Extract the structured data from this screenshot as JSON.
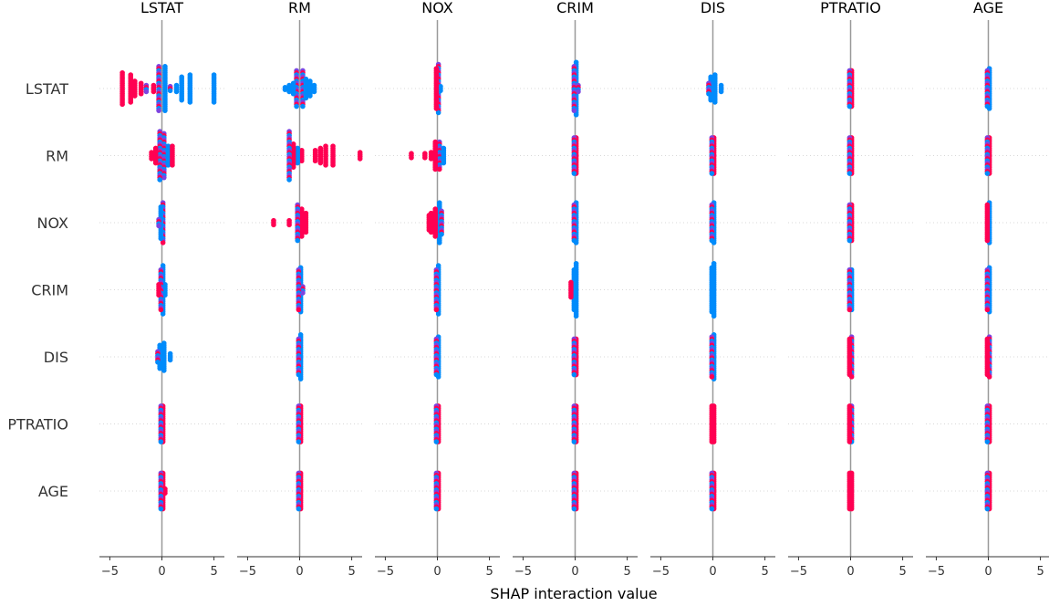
{
  "chart_data": {
    "type": "scatter",
    "subtype": "shap-interaction-beeswarm-grid",
    "xlabel": "SHAP interaction value",
    "features": [
      "LSTAT",
      "RM",
      "NOX",
      "CRIM",
      "DIS",
      "PTRATIO",
      "AGE"
    ],
    "panel_titles": [
      "LSTAT",
      "RM",
      "NOX",
      "CRIM",
      "DIS",
      "PTRATIO",
      "AGE"
    ],
    "row_labels": [
      "LSTAT",
      "RM",
      "NOX",
      "CRIM",
      "DIS",
      "PTRATIO",
      "AGE"
    ],
    "xlim": [
      -6,
      6
    ],
    "xticks": [
      -5,
      0,
      5
    ],
    "xtick_labels": [
      "−5",
      "0",
      "5"
    ],
    "grid": false,
    "row_gridlines": "dotted",
    "zero_line": true,
    "colormap": {
      "low": "#008bfb",
      "mid": "#7d44e0",
      "high": "#ff0052"
    },
    "cells": [
      [
        {
          "pos": [
            [
              0.3,
              "l",
              22
            ],
            [
              0.8,
              "m",
              3
            ],
            [
              1.4,
              "l",
              4
            ],
            [
              1.9,
              "l",
              12
            ],
            [
              2.7,
              "l",
              14
            ],
            [
              5.0,
              "l",
              14
            ]
          ],
          "neg": [
            [
              -0.3,
              "m",
              22
            ],
            [
              -0.8,
              "h",
              4
            ],
            [
              -1.5,
              "m",
              4
            ],
            [
              -2.0,
              "h",
              6
            ],
            [
              -2.6,
              "h",
              8
            ],
            [
              -3.0,
              "h",
              14
            ],
            [
              -3.8,
              "h",
              16
            ]
          ]
        },
        {
          "pos": [
            [
              0.3,
              "m",
              18
            ],
            [
              0.6,
              "l",
              10
            ],
            [
              1.0,
              "l",
              8
            ],
            [
              1.4,
              "l",
              4
            ]
          ],
          "neg": [
            [
              -0.3,
              "m",
              18
            ],
            [
              -0.6,
              "l",
              6
            ],
            [
              -1.0,
              "l",
              4
            ],
            [
              -1.4,
              "l",
              2
            ]
          ]
        },
        {
          "pos": [
            [
              0.1,
              "m",
              24
            ],
            [
              0.3,
              "l",
              3
            ]
          ],
          "neg": [
            [
              -0.1,
              "h",
              20
            ]
          ]
        },
        {
          "pos": [
            [
              0.1,
              "l",
              26
            ],
            [
              0.3,
              "m",
              4
            ]
          ],
          "neg": [
            [
              -0.1,
              "m",
              22
            ]
          ]
        },
        {
          "pos": [
            [
              0.2,
              "l",
              14
            ],
            [
              0.8,
              "l",
              4
            ]
          ],
          "neg": [
            [
              -0.2,
              "l",
              12
            ],
            [
              -0.4,
              "m",
              6
            ]
          ]
        },
        {
          "pos": [
            [
              0.1,
              "h",
              18
            ]
          ],
          "neg": [
            [
              -0.1,
              "m",
              18
            ]
          ]
        },
        {
          "pos": [
            [
              0.1,
              "l",
              20
            ]
          ],
          "neg": [
            [
              -0.1,
              "m",
              18
            ]
          ]
        }
      ],
      [
        {
          "pos": [
            [
              0.2,
              "m",
              22
            ],
            [
              0.6,
              "l",
              10
            ],
            [
              1.0,
              "h",
              10
            ]
          ],
          "neg": [
            [
              -0.2,
              "m",
              24
            ],
            [
              -0.6,
              "h",
              8
            ],
            [
              -1.0,
              "h",
              4
            ]
          ]
        },
        {
          "pos": [
            [
              0.2,
              "h",
              6
            ],
            [
              1.5,
              "h",
              6
            ],
            [
              2.0,
              "h",
              8
            ],
            [
              2.5,
              "h",
              10
            ],
            [
              3.2,
              "h",
              10
            ],
            [
              5.8,
              "h",
              4
            ]
          ],
          "neg": [
            [
              -0.2,
              "l",
              8
            ],
            [
              -0.6,
              "h",
              12
            ],
            [
              -1.0,
              "m",
              24
            ]
          ]
        },
        {
          "pos": [
            [
              0.2,
              "m",
              14
            ],
            [
              0.6,
              "l",
              8
            ]
          ],
          "neg": [
            [
              -0.2,
              "h",
              14
            ],
            [
              -0.6,
              "h",
              4
            ],
            [
              -1.2,
              "h",
              3
            ],
            [
              -2.5,
              "h",
              3
            ]
          ]
        },
        {
          "pos": [
            [
              0.1,
              "h",
              18
            ]
          ],
          "neg": [
            [
              -0.1,
              "m",
              18
            ]
          ]
        },
        {
          "pos": [
            [
              0.1,
              "h",
              18
            ]
          ],
          "neg": [
            [
              -0.1,
              "m",
              18
            ]
          ]
        },
        {
          "pos": [
            [
              0.1,
              "h",
              18
            ]
          ],
          "neg": [
            [
              -0.1,
              "m",
              18
            ]
          ]
        },
        {
          "pos": [
            [
              0.1,
              "h",
              18
            ]
          ],
          "neg": [
            [
              -0.1,
              "m",
              18
            ]
          ]
        }
      ],
      [
        {
          "pos": [
            [
              0.1,
              "m",
              20
            ]
          ],
          "neg": [
            [
              -0.1,
              "l",
              16
            ],
            [
              -0.3,
              "m",
              4
            ]
          ]
        },
        {
          "pos": [
            [
              0.2,
              "h",
              14
            ],
            [
              0.6,
              "h",
              10
            ]
          ],
          "neg": [
            [
              -0.2,
              "m",
              18
            ],
            [
              -1.0,
              "h",
              3
            ],
            [
              -2.5,
              "h",
              3
            ]
          ]
        },
        {
          "pos": [
            [
              0.2,
              "l",
              20
            ],
            [
              0.4,
              "m",
              12
            ]
          ],
          "neg": [
            [
              -0.2,
              "h",
              14
            ],
            [
              -0.6,
              "h",
              10
            ],
            [
              -0.8,
              "h",
              8
            ]
          ]
        },
        {
          "pos": [
            [
              0.1,
              "l",
              20
            ]
          ],
          "neg": [
            [
              -0.1,
              "m",
              18
            ]
          ]
        },
        {
          "pos": [
            [
              0.1,
              "l",
              20
            ]
          ],
          "neg": [
            [
              -0.1,
              "m",
              18
            ]
          ]
        },
        {
          "pos": [
            [
              0.1,
              "h",
              18
            ]
          ],
          "neg": [
            [
              -0.1,
              "m",
              18
            ]
          ]
        },
        {
          "pos": [
            [
              0.1,
              "l",
              20
            ]
          ],
          "neg": [
            [
              -0.1,
              "h",
              18
            ]
          ]
        }
      ],
      [
        {
          "pos": [
            [
              0.1,
              "l",
              24
            ],
            [
              0.3,
              "l",
              6
            ]
          ],
          "neg": [
            [
              -0.1,
              "m",
              20
            ],
            [
              -0.3,
              "h",
              6
            ]
          ]
        },
        {
          "pos": [
            [
              0.1,
              "l",
              22
            ],
            [
              0.3,
              "m",
              4
            ]
          ],
          "neg": [
            [
              -0.1,
              "m",
              20
            ]
          ]
        },
        {
          "pos": [
            [
              0.1,
              "l",
              24
            ]
          ],
          "neg": [
            [
              -0.1,
              "m",
              20
            ]
          ]
        },
        {
          "pos": [
            [
              0.1,
              "l",
              26
            ]
          ],
          "neg": [
            [
              -0.1,
              "l",
              20
            ],
            [
              -0.4,
              "h",
              8
            ]
          ]
        },
        {
          "pos": [
            [
              0.1,
              "l",
              26
            ]
          ],
          "neg": [
            [
              -0.1,
              "l",
              22
            ]
          ]
        },
        {
          "pos": [
            [
              0.1,
              "l",
              20
            ]
          ],
          "neg": [
            [
              -0.1,
              "m",
              20
            ]
          ]
        },
        {
          "pos": [
            [
              0.1,
              "l",
              22
            ]
          ],
          "neg": [
            [
              -0.1,
              "m",
              20
            ]
          ]
        }
      ],
      [
        {
          "pos": [
            [
              0.2,
              "l",
              14
            ],
            [
              0.8,
              "l",
              4
            ]
          ],
          "neg": [
            [
              -0.2,
              "l",
              12
            ],
            [
              -0.4,
              "m",
              6
            ]
          ]
        },
        {
          "pos": [
            [
              0.1,
              "l",
              22
            ]
          ],
          "neg": [
            [
              -0.1,
              "m",
              18
            ]
          ]
        },
        {
          "pos": [
            [
              0.1,
              "l",
              20
            ]
          ],
          "neg": [
            [
              -0.1,
              "m",
              18
            ]
          ]
        },
        {
          "pos": [
            [
              0.1,
              "h",
              18
            ]
          ],
          "neg": [
            [
              -0.1,
              "m",
              18
            ]
          ]
        },
        {
          "pos": [
            [
              0.1,
              "l",
              22
            ]
          ],
          "neg": [
            [
              -0.1,
              "m",
              20
            ]
          ]
        },
        {
          "pos": [
            [
              0.1,
              "m",
              20
            ]
          ],
          "neg": [
            [
              -0.1,
              "h",
              18
            ]
          ]
        },
        {
          "pos": [
            [
              0.1,
              "m",
              20
            ]
          ],
          "neg": [
            [
              -0.1,
              "h",
              18
            ]
          ]
        }
      ],
      [
        {
          "pos": [
            [
              0.1,
              "h",
              18
            ]
          ],
          "neg": [
            [
              -0.1,
              "m",
              18
            ]
          ]
        },
        {
          "pos": [
            [
              0.1,
              "h",
              18
            ]
          ],
          "neg": [
            [
              -0.1,
              "m",
              18
            ]
          ]
        },
        {
          "pos": [
            [
              0.1,
              "h",
              18
            ]
          ],
          "neg": [
            [
              -0.1,
              "m",
              18
            ]
          ]
        },
        {
          "pos": [
            [
              0.1,
              "h",
              18
            ]
          ],
          "neg": [
            [
              -0.1,
              "m",
              18
            ]
          ]
        },
        {
          "pos": [
            [
              0.1,
              "h",
              18
            ]
          ],
          "neg": [
            [
              -0.1,
              "h",
              18
            ]
          ]
        },
        {
          "pos": [
            [
              0.1,
              "m",
              18
            ]
          ],
          "neg": [
            [
              -0.1,
              "h",
              18
            ]
          ]
        },
        {
          "pos": [
            [
              0.1,
              "h",
              18
            ]
          ],
          "neg": [
            [
              -0.1,
              "m",
              18
            ]
          ]
        }
      ],
      [
        {
          "pos": [
            [
              0.1,
              "h",
              18
            ],
            [
              0.3,
              "h",
              3
            ]
          ],
          "neg": [
            [
              -0.1,
              "m",
              18
            ]
          ]
        },
        {
          "pos": [
            [
              0.1,
              "h",
              18
            ]
          ],
          "neg": [
            [
              -0.1,
              "m",
              18
            ]
          ]
        },
        {
          "pos": [
            [
              0.1,
              "h",
              18
            ]
          ],
          "neg": [
            [
              -0.1,
              "m",
              18
            ]
          ]
        },
        {
          "pos": [
            [
              0.1,
              "h",
              18
            ]
          ],
          "neg": [
            [
              -0.1,
              "m",
              18
            ]
          ]
        },
        {
          "pos": [
            [
              0.1,
              "h",
              18
            ]
          ],
          "neg": [
            [
              -0.1,
              "m",
              18
            ]
          ]
        },
        {
          "pos": [
            [
              0.1,
              "h",
              18
            ]
          ],
          "neg": [
            [
              -0.1,
              "h",
              18
            ]
          ]
        },
        {
          "pos": [
            [
              0.1,
              "h",
              18
            ]
          ],
          "neg": [
            [
              -0.1,
              "m",
              18
            ]
          ]
        }
      ]
    ]
  }
}
